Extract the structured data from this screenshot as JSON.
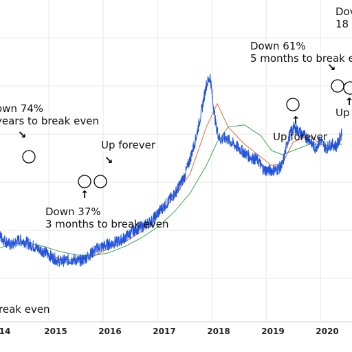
{
  "chart_data": {
    "type": "line",
    "title": "",
    "xlabel": "",
    "ylabel": "",
    "x_ticks": [
      "14",
      "2015",
      "2016",
      "2017",
      "2018",
      "2019",
      "2020"
    ],
    "grid": true,
    "legend": "none",
    "colors": {
      "price": "#2255dd",
      "ma_fast": "#e8653a",
      "ma_slow": "#3aa64a",
      "grid": "#e6e6e6"
    },
    "series": [
      {
        "values_x": [
          2013.25,
          2013.5,
          2013.75,
          2013.95,
          2014.05,
          2014.15,
          2014.3,
          2014.45,
          2014.55,
          2014.65,
          2014.8,
          2014.95,
          2015.05,
          2015.2,
          2015.35,
          2015.45,
          2015.55,
          2015.65,
          2015.75,
          2015.85,
          2015.95,
          2016.1,
          2016.3,
          2016.5,
          2016.6,
          2016.75,
          2016.9,
          2017.05,
          2017.2,
          2017.35,
          2017.5,
          2017.6,
          2017.7,
          2017.8,
          2017.9,
          2017.97,
          2018.02,
          2018.08,
          2018.15,
          2018.25,
          2018.4,
          2018.55,
          2018.7,
          2018.85,
          2018.95,
          2019.05,
          2019.2,
          2019.3,
          2019.4,
          2019.5,
          2019.6,
          2019.7,
          2019.8,
          2019.9,
          2020.0,
          2020.1,
          2020.2,
          2020.3,
          2020.4
        ],
        "values_y": [
          5.55,
          5.7,
          5.85,
          6.05,
          6.1,
          5.98,
          5.82,
          5.95,
          5.92,
          5.85,
          5.75,
          5.65,
          5.55,
          5.45,
          5.48,
          5.5,
          5.45,
          5.5,
          5.6,
          5.72,
          5.78,
          5.85,
          5.92,
          6.1,
          6.2,
          6.28,
          6.4,
          6.65,
          6.85,
          7.1,
          7.45,
          7.85,
          8.3,
          8.9,
          9.6,
          9.78,
          9.2,
          8.6,
          8.3,
          8.35,
          8.2,
          8.05,
          7.9,
          7.82,
          7.6,
          7.58,
          7.6,
          7.7,
          8.3,
          8.6,
          8.5,
          8.4,
          8.3,
          8.1,
          8.3,
          8.1,
          8.2,
          8.15,
          8.5
        ]
      },
      {
        "values_x": [
          2013.25,
          2013.6,
          2013.95,
          2014.3,
          2014.6,
          2014.9,
          2015.2,
          2015.5,
          2015.8,
          2016.1,
          2016.4,
          2016.7,
          2017.0,
          2017.3,
          2017.6,
          2017.9,
          2018.1,
          2018.3,
          2018.6,
          2018.9,
          2019.1,
          2019.3,
          2019.5,
          2019.8,
          2020.0,
          2020.2,
          2020.4
        ],
        "values_y": [
          5.5,
          5.7,
          5.95,
          5.9,
          5.85,
          5.7,
          5.5,
          5.48,
          5.55,
          5.75,
          5.9,
          6.15,
          6.5,
          6.95,
          7.5,
          8.6,
          9.15,
          8.6,
          8.2,
          7.9,
          7.7,
          7.75,
          8.25,
          8.4,
          8.2,
          8.15,
          8.3
        ]
      },
      {
        "values_x": [
          2013.25,
          2013.6,
          2013.95,
          2014.3,
          2014.6,
          2014.9,
          2015.2,
          2015.5,
          2015.8,
          2016.1,
          2016.4,
          2016.7,
          2017.0,
          2017.3,
          2017.6,
          2017.9,
          2018.1,
          2018.3,
          2018.6,
          2018.9,
          2019.1,
          2019.3,
          2019.5,
          2019.8,
          2020.0,
          2020.2,
          2020.4
        ],
        "values_y": [
          5.2,
          5.45,
          5.7,
          5.85,
          5.88,
          5.8,
          5.68,
          5.6,
          5.58,
          5.65,
          5.8,
          6.0,
          6.25,
          6.6,
          7.05,
          7.7,
          8.25,
          8.6,
          8.65,
          8.4,
          8.05,
          7.95,
          8.05,
          8.2,
          8.2,
          8.15,
          8.2
        ]
      }
    ],
    "annotations": [
      {
        "id": "a1",
        "lines": [
          "own 74%",
          "years to break even"
        ],
        "marker": "down"
      },
      {
        "id": "a2",
        "lines": [
          "Up forever"
        ],
        "marker": "down"
      },
      {
        "id": "a3",
        "lines": [
          "Down 37%",
          "3 months to break even"
        ],
        "marker": "up"
      },
      {
        "id": "a4",
        "lines": [
          "Down 61%",
          "5 months to break e"
        ],
        "marker": "down"
      },
      {
        "id": "a5",
        "lines": [
          "Up forever"
        ],
        "marker": "up"
      },
      {
        "id": "a6",
        "lines": [
          "Dov",
          "18 d"
        ],
        "marker": "none"
      },
      {
        "id": "a7",
        "lines": [
          "Up"
        ],
        "marker": "up"
      },
      {
        "id": "a8",
        "lines": [
          "reak even"
        ],
        "marker": "none"
      }
    ]
  }
}
